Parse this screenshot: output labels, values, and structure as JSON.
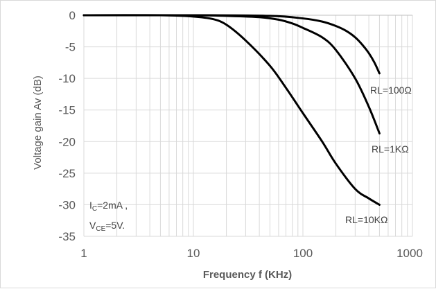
{
  "chart_data": {
    "type": "line",
    "xscale": "log",
    "xlim": [
      1,
      1000
    ],
    "ylim": [
      -35,
      0
    ],
    "xticks": [
      "1",
      "10",
      "100",
      "1000"
    ],
    "yticks": [
      "0",
      "-5",
      "-10",
      "-15",
      "-20",
      "-25",
      "-30",
      "-35"
    ],
    "xlabel": "Frequency f (KHz)",
    "ylabel": "Voltage gain Av (dB)",
    "grid": "major and minor vertical, major horizontal",
    "series": [
      {
        "name": "RL=100Ω",
        "x": [
          1,
          10,
          50,
          100,
          150,
          200,
          250,
          300,
          350,
          400,
          450,
          500
        ],
        "y": [
          0,
          0,
          -0.1,
          -0.5,
          -1.0,
          -1.7,
          -2.5,
          -3.5,
          -4.7,
          -6.0,
          -7.5,
          -9.2
        ]
      },
      {
        "name": "RL=1KΩ",
        "x": [
          1,
          10,
          20,
          40,
          60,
          80,
          100,
          150,
          200,
          300,
          400,
          500
        ],
        "y": [
          0,
          0,
          -0.1,
          -0.3,
          -0.7,
          -1.3,
          -2.0,
          -3.5,
          -5.5,
          -10.0,
          -14.5,
          -18.7
        ]
      },
      {
        "name": "RL=10KΩ",
        "x": [
          1,
          5,
          10,
          15,
          20,
          30,
          50,
          70,
          100,
          150,
          200,
          300,
          400,
          500
        ],
        "y": [
          0,
          0,
          -0.2,
          -0.6,
          -1.5,
          -4.0,
          -8.0,
          -11.5,
          -15.5,
          -20.0,
          -23.5,
          -27.5,
          -29.0,
          -30.0
        ]
      }
    ],
    "annotations": {
      "ic_main": "I",
      "ic_sub": "C",
      "ic_value": "=2mA ,",
      "vce_main": "V",
      "vce_sub": "CE",
      "vce_value": "=5V."
    },
    "colors": {
      "line": "#000000",
      "grid": "#d9d9d9",
      "text": "#595959"
    }
  }
}
